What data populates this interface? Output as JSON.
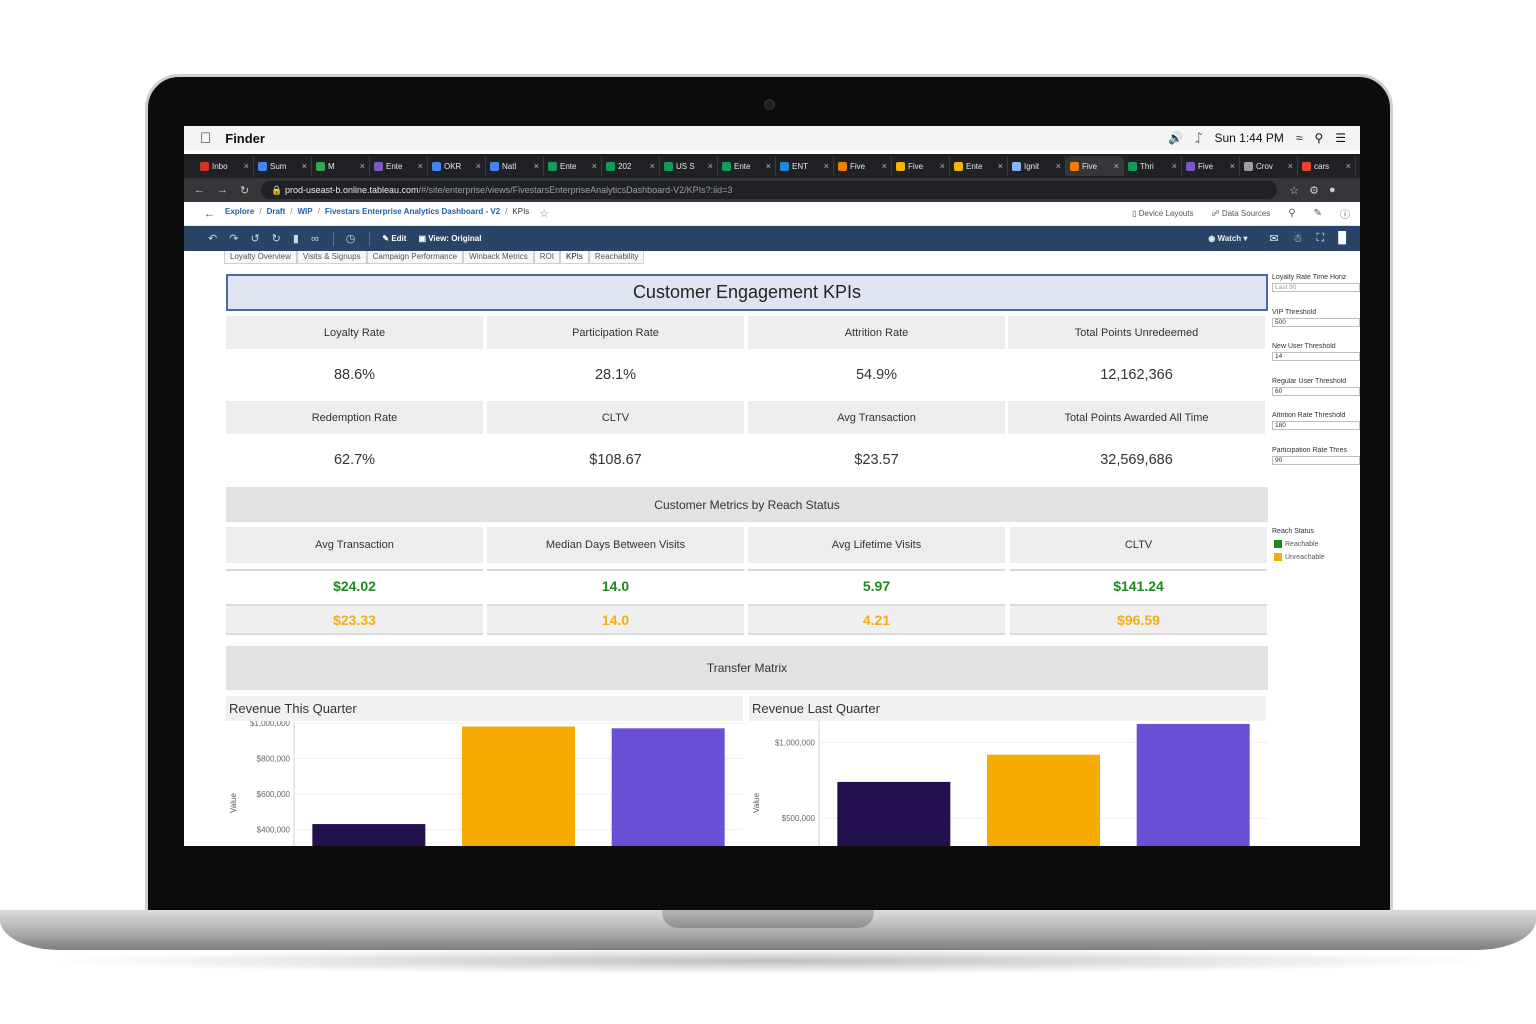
{
  "menubar": {
    "app_name": "Finder",
    "clock": "Sun 1:44 PM"
  },
  "browser": {
    "tabs": [
      {
        "label": "Inbo",
        "color": "#d93025"
      },
      {
        "label": "Sum",
        "color": "#4285f4"
      },
      {
        "label": "M",
        "color": "#34a853"
      },
      {
        "label": "Ente",
        "color": "#7e57c2"
      },
      {
        "label": "OKR",
        "color": "#4285f4"
      },
      {
        "label": "Natl",
        "color": "#4285f4"
      },
      {
        "label": "Ente",
        "color": "#0f9d58"
      },
      {
        "label": "202",
        "color": "#0f9d58"
      },
      {
        "label": "US S",
        "color": "#0f9d58"
      },
      {
        "label": "Ente",
        "color": "#0f9d58"
      },
      {
        "label": "ENT",
        "color": "#1e88e5"
      },
      {
        "label": "Five",
        "color": "#f57c00"
      },
      {
        "label": "Five",
        "color": "#f4b400"
      },
      {
        "label": "Ente",
        "color": "#f4b400"
      },
      {
        "label": "Ignit",
        "color": "#8ab4f8"
      },
      {
        "label": "Five",
        "color": "#f57c00"
      },
      {
        "label": "Thri",
        "color": "#0f9d58"
      },
      {
        "label": "Five",
        "color": "#7e57c2"
      },
      {
        "label": "Crov",
        "color": "#9e9e9e"
      },
      {
        "label": "cars",
        "color": "#ea4335"
      }
    ],
    "url_host": "prod-useast-b.online.tableau.com",
    "url_path": "/#/site/enterprise/views/FivestarsEnterpriseAnalyticsDashboard-V2/KPIs?:iid=3"
  },
  "breadcrumb": {
    "items": [
      "Explore",
      "Draft",
      "WIP",
      "Fivestars Enterprise Analytics Dashboard - V2"
    ],
    "current": "KPIs"
  },
  "header_actions": {
    "device_layouts": "Device Layouts",
    "data_sources": "Data Sources"
  },
  "toolbar": {
    "edit": "Edit",
    "view": "View: Original",
    "watch": "Watch"
  },
  "sheet_tabs": [
    "Loyalty Overview",
    "Visits & Signups",
    "Campaign Performance",
    "Winback Metrics",
    "ROI",
    "KPIs",
    "Reachability"
  ],
  "dashboard": {
    "title": "Customer Engagement KPIs",
    "kpis": [
      {
        "label": "Loyalty Rate",
        "value": "88.6%"
      },
      {
        "label": "Participation Rate",
        "value": "28.1%"
      },
      {
        "label": "Attrition Rate",
        "value": "54.9%"
      },
      {
        "label": "Total Points Unredeemed",
        "value": "12,162,366"
      },
      {
        "label": "Redemption Rate",
        "value": "62.7%"
      },
      {
        "label": "CLTV",
        "value": "$108.67"
      },
      {
        "label": "Avg Transaction",
        "value": "$23.57"
      },
      {
        "label": "Total Points Awarded All Time",
        "value": "32,569,686"
      }
    ],
    "reach_section_title": "Customer Metrics by Reach Status",
    "reach_metrics": [
      {
        "label": "Avg Transaction",
        "reachable": "$24.02",
        "unreachable": "$23.33"
      },
      {
        "label": "Median Days Between Visits",
        "reachable": "14.0",
        "unreachable": "14.0"
      },
      {
        "label": "Avg Lifetime Visits",
        "reachable": "5.97",
        "unreachable": "4.21"
      },
      {
        "label": "CLTV",
        "reachable": "$141.24",
        "unreachable": "$96.59"
      }
    ],
    "transfer_title": "Transfer Matrix"
  },
  "filters": [
    {
      "label": "Loyalty Rate Time Horiz",
      "value": "Last 90"
    },
    {
      "label": "VIP Threshold",
      "value": "500"
    },
    {
      "label": "New User Threshold",
      "value": "14"
    },
    {
      "label": "Regular User Threshold",
      "value": "60"
    },
    {
      "label": "Attrition Rate Threshold",
      "value": "180"
    },
    {
      "label": "Participation Rate Thres",
      "value": "90"
    }
  ],
  "legend": {
    "title": "Reach Status",
    "items": [
      {
        "label": "Reachable",
        "color": "#1e8a1e"
      },
      {
        "label": "Unreachable",
        "color": "#f3ad14"
      }
    ]
  },
  "chart_data": [
    {
      "type": "bar",
      "title": "Revenue This Quarter",
      "ylabel": "Value",
      "y_ticks": [
        "$400,000",
        "$600,000",
        "$800,000",
        "$1,000,000"
      ],
      "ylim": [
        250000,
        1000000
      ],
      "values": [
        430000,
        980000,
        970000
      ],
      "colors": [
        "#22104f",
        "#f5ab00",
        "#6a4fd6"
      ]
    },
    {
      "type": "bar",
      "title": "Revenue Last Quarter",
      "ylabel": "Value",
      "y_ticks": [
        "$500,000",
        "$1,000,000"
      ],
      "ylim": [
        250000,
        1200000
      ],
      "values": [
        740000,
        920000,
        1210000
      ],
      "colors": [
        "#22104f",
        "#f5ab00",
        "#6a4fd6"
      ]
    }
  ]
}
